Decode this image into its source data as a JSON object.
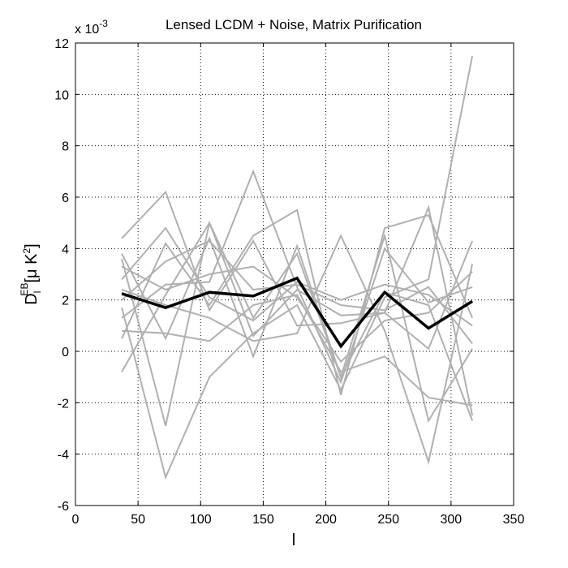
{
  "chart_data": {
    "type": "line",
    "title": "Lensed LCDM + Noise, Matrix Purification",
    "xlabel": "l",
    "ylabel": {
      "main": "D",
      "subscript": "l",
      "superscript": "EB",
      "unit_open": "[",
      "unit_mu": "μ",
      "unit_k": " K",
      "unit_k_power": "2",
      "unit_close": "]"
    },
    "y_multiplier_label": {
      "base": "x 10",
      "exponent": "-3"
    },
    "xlim": [
      0,
      350
    ],
    "ylim": [
      -6,
      12
    ],
    "xticks": [
      0,
      50,
      100,
      150,
      200,
      250,
      300,
      350
    ],
    "yticks": [
      -6,
      -4,
      -2,
      0,
      2,
      4,
      6,
      8,
      10,
      12
    ],
    "grid": true,
    "x": [
      37,
      72,
      107,
      142,
      177,
      212,
      247,
      282,
      317
    ],
    "realization_color": "#b0b0b0",
    "mean_color": "#000000",
    "realizations": [
      [
        3.6,
        -2.9,
        5.0,
        1.3,
        3.8,
        -1.0,
        4.5,
        -2.7,
        0.1
      ],
      [
        -0.8,
        2.2,
        5.0,
        0.6,
        2.4,
        1.4,
        1.5,
        5.6,
        -2.5
      ],
      [
        1.3,
        2.6,
        2.7,
        7.0,
        2.5,
        -1.2,
        4.0,
        1.9,
        2.5
      ],
      [
        1.7,
        -4.9,
        -1.0,
        0.7,
        1.8,
        -1.5,
        2.1,
        2.8,
        11.5
      ],
      [
        0.5,
        4.2,
        1.8,
        4.5,
        5.5,
        -1.7,
        4.8,
        5.3,
        1.3
      ],
      [
        4.4,
        6.2,
        1.6,
        4.3,
        1.0,
        1.1,
        1.5,
        0.1,
        4.3
      ],
      [
        2.4,
        1.8,
        1.3,
        0.4,
        0.7,
        4.5,
        0.8,
        -4.3,
        3.4
      ],
      [
        3.8,
        0.5,
        4.4,
        -0.2,
        4.1,
        -1.0,
        2.3,
        1.8,
        -2.7
      ],
      [
        2.0,
        3.5,
        4.3,
        2.4,
        2.6,
        1.8,
        1.6,
        2.5,
        0.3
      ],
      [
        0.8,
        0.7,
        0.4,
        1.8,
        2.2,
        -0.8,
        -0.2,
        -1.8,
        -2.1
      ],
      [
        3.3,
        2.4,
        3.0,
        3.3,
        2.1,
        -0.4,
        1.2,
        1.5,
        3.1
      ],
      [
        2.8,
        4.8,
        2.1,
        1.2,
        2.7,
        2.0,
        2.6,
        2.2,
        1.0
      ]
    ],
    "mean": [
      2.25,
      1.7,
      2.3,
      2.15,
      2.85,
      0.2,
      2.3,
      0.9,
      1.95
    ]
  }
}
